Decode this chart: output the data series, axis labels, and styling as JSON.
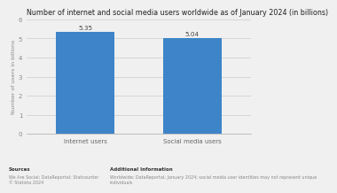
{
  "title": "Number of internet and social media users worldwide as of January 2024 (in billions)",
  "categories": [
    "Internet users",
    "Social media users"
  ],
  "values": [
    5.35,
    5.04
  ],
  "bar_labels": [
    "5.35",
    "5.04"
  ],
  "bar_color": "#3d85c8",
  "ylabel": "Number of users in billions",
  "ylim": [
    0,
    6
  ],
  "yticks": [
    0,
    1,
    2,
    3,
    4,
    5,
    6
  ],
  "background_color": "#f0f0f0",
  "plot_bg_color": "#f0f0f0",
  "title_fontsize": 5.8,
  "label_fontsize": 4.5,
  "tick_fontsize": 5.0,
  "bar_label_fontsize": 5.2,
  "sources_title": "Sources",
  "sources_body": "We Are Social; DataReportal; Statcounter\n© Statista 2024",
  "additional_title": "Additional Information",
  "additional_body": "Worldwide; DataReportal; January 2024; social media user identities may not represent unique individuals"
}
